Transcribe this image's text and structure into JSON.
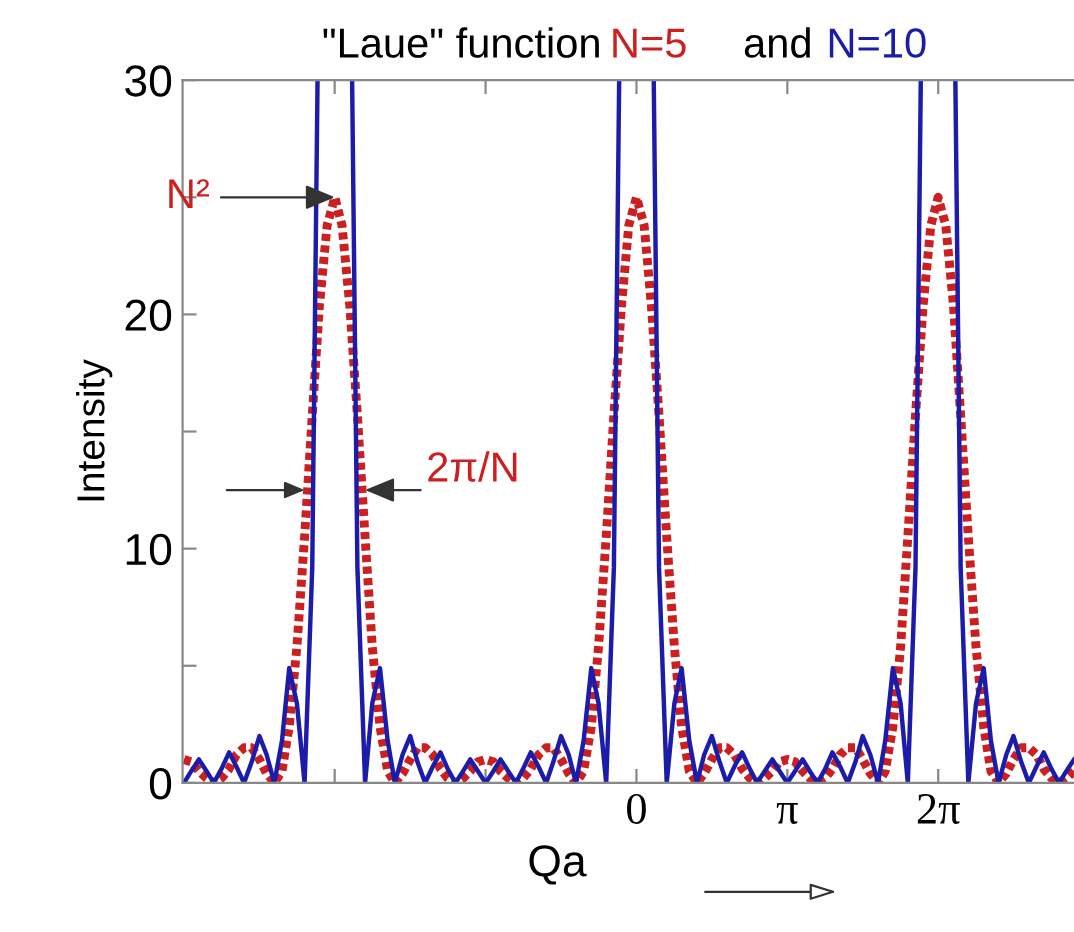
{
  "chart_data": {
    "type": "line",
    "title": "\"Laue\" function",
    "xlabel": "Qa",
    "ylabel": "Intensity",
    "xlim": [
      -9.45,
      9.11
    ],
    "ylim": [
      0,
      30
    ],
    "xticks": [
      {
        "value": -6.2832,
        "label": null
      },
      {
        "value": -3.1416,
        "label": null
      },
      {
        "value": 0,
        "label": "0"
      },
      {
        "value": 3.1416,
        "label": "π"
      },
      {
        "value": 6.2832,
        "label": "2π"
      }
    ],
    "yticks": [
      0,
      {
        "value": 5,
        "label": null
      },
      10,
      {
        "value": 15,
        "label": null
      },
      20,
      {
        "value": 25,
        "label": null
      },
      30
    ],
    "grid": false,
    "annotations": [
      "and",
      {
        "text": "N²",
        "x": -6.28,
        "y": 25
      },
      {
        "text": "2π/N",
        "x": -5.65,
        "y": 12.5
      }
    ],
    "series": [
      {
        "name": "N=5",
        "color": "#cc1f1f",
        "line_style": "dotted",
        "x": [
          -9.42,
          -9.27,
          -9.11,
          -8.95,
          -8.8,
          -8.64,
          -8.48,
          -8.33,
          -8.17,
          -8.01,
          -7.85,
          -7.7,
          -7.54,
          -7.38,
          -7.23,
          -7.07,
          -6.91,
          -6.75,
          -6.6,
          -6.44,
          -6.28,
          -6.13,
          -5.97,
          -5.81,
          -5.65,
          -5.5,
          -5.34,
          -5.18,
          -5.03,
          -4.87,
          -4.71,
          -4.56,
          -4.4,
          -4.24,
          -4.08,
          -3.93,
          -3.77,
          -3.61,
          -3.46,
          -3.3,
          -3.14,
          -2.98,
          -2.83,
          -2.67,
          -2.51,
          -2.36,
          -2.2,
          -2.04,
          -1.88,
          -1.73,
          -1.57,
          -1.41,
          -1.26,
          -1.1,
          -0.94,
          -0.79,
          -0.63,
          -0.47,
          -0.31,
          -0.16,
          0,
          0.16,
          0.31,
          0.47,
          0.63,
          0.79,
          0.94,
          1.1,
          1.26,
          1.41,
          1.57,
          1.73,
          1.88,
          2.04,
          2.2,
          2.36,
          2.51,
          2.67,
          2.83,
          2.98,
          3.14,
          3.3,
          3.46,
          3.61,
          3.77,
          3.93,
          4.08,
          4.24,
          4.4,
          4.56,
          4.71,
          4.87,
          5.03,
          5.18,
          5.34,
          5.5,
          5.65,
          5.81,
          5.97,
          6.13,
          6.28,
          6.44,
          6.6,
          6.75,
          6.91,
          7.07,
          7.23,
          7.38,
          7.54,
          7.7,
          7.85,
          8.01,
          8.17,
          8.33,
          8.48,
          8.64,
          8.8,
          8.95,
          9.11
        ],
        "values": [
          1.0,
          0.9,
          0.5,
          0.2,
          0,
          0.2,
          0.6,
          1.2,
          1.5,
          1.5,
          1.0,
          0.4,
          0,
          0.5,
          2.4,
          5.8,
          10.5,
          15.7,
          20.4,
          23.8,
          25,
          23.8,
          20.4,
          15.7,
          10.5,
          5.8,
          2.4,
          0.5,
          0,
          0.4,
          1.0,
          1.5,
          1.5,
          1.2,
          0.6,
          0.2,
          0,
          0.2,
          0.5,
          0.9,
          1.0,
          0.9,
          0.5,
          0.2,
          0,
          0.2,
          0.6,
          1.2,
          1.5,
          1.5,
          1.0,
          0.4,
          0,
          0.5,
          2.4,
          5.8,
          10.5,
          15.7,
          20.4,
          23.8,
          25,
          23.8,
          20.4,
          15.7,
          10.5,
          5.8,
          2.4,
          0.5,
          0,
          0.4,
          1.0,
          1.5,
          1.5,
          1.2,
          0.6,
          0.2,
          0,
          0.2,
          0.5,
          0.9,
          1.0,
          0.9,
          0.5,
          0.2,
          0,
          0.2,
          0.6,
          1.2,
          1.5,
          1.5,
          1.0,
          0.4,
          0,
          0.5,
          2.4,
          5.8,
          10.5,
          15.7,
          20.4,
          23.8,
          25,
          23.8,
          20.4,
          15.7,
          10.5,
          5.8,
          2.4,
          0.5,
          0,
          0.4,
          1.0,
          1.5,
          1.5,
          1.2,
          0.6,
          0.2,
          0,
          0.2,
          0.5
        ]
      },
      {
        "name": "N=10",
        "color": "#1c1caa",
        "line_style": "solid",
        "x": [
          -9.42,
          -9.27,
          -9.11,
          -8.95,
          -8.8,
          -8.64,
          -8.48,
          -8.33,
          -8.17,
          -8.01,
          -7.85,
          -7.7,
          -7.54,
          -7.38,
          -7.23,
          -7.07,
          -6.91,
          -6.75,
          -6.64,
          -6.28,
          -5.92,
          -5.81,
          -5.65,
          -5.5,
          -5.34,
          -5.18,
          -5.03,
          -4.87,
          -4.71,
          -4.56,
          -4.4,
          -4.24,
          -4.08,
          -3.93,
          -3.77,
          -3.61,
          -3.46,
          -3.3,
          -3.14,
          -2.98,
          -2.83,
          -2.67,
          -2.51,
          -2.36,
          -2.2,
          -2.04,
          -1.88,
          -1.73,
          -1.57,
          -1.41,
          -1.26,
          -1.1,
          -0.94,
          -0.79,
          -0.63,
          -0.47,
          -0.36,
          0,
          0.36,
          0.47,
          0.63,
          0.79,
          0.94,
          1.1,
          1.26,
          1.41,
          1.57,
          1.73,
          1.88,
          2.04,
          2.2,
          2.36,
          2.51,
          2.67,
          2.83,
          2.98,
          3.14,
          3.3,
          3.46,
          3.61,
          3.77,
          3.93,
          4.08,
          4.24,
          4.4,
          4.56,
          4.71,
          4.87,
          5.03,
          5.18,
          5.34,
          5.5,
          5.65,
          5.81,
          5.92,
          6.28,
          6.64,
          6.75,
          6.91,
          7.07,
          7.23,
          7.38,
          7.54,
          7.7,
          7.85,
          8.01,
          8.17,
          8.33,
          8.48,
          8.64,
          8.8,
          8.95,
          9.11
        ],
        "values": [
          0,
          0.5,
          1.0,
          0.5,
          0,
          0.6,
          1.3,
          0.7,
          0,
          0.9,
          2.0,
          1.2,
          0,
          1.8,
          4.9,
          3.4,
          0,
          9.2,
          30,
          null,
          30,
          9.2,
          0,
          3.4,
          4.9,
          1.8,
          0,
          1.2,
          2.0,
          0.9,
          0,
          0.7,
          1.3,
          0.6,
          0,
          0.5,
          1.0,
          0.5,
          0,
          0.5,
          1.0,
          0.5,
          0,
          0.6,
          1.3,
          0.7,
          0,
          0.9,
          2.0,
          1.2,
          0,
          1.8,
          4.9,
          3.4,
          0,
          9.2,
          30,
          null,
          30,
          9.2,
          0,
          3.4,
          4.9,
          1.8,
          0,
          1.2,
          2.0,
          0.9,
          0,
          0.7,
          1.3,
          0.6,
          0,
          0.5,
          1.0,
          0.5,
          0,
          0.5,
          1.0,
          0.5,
          0,
          0.6,
          1.3,
          0.7,
          0,
          0.9,
          2.0,
          1.2,
          0,
          1.8,
          4.9,
          3.4,
          0,
          9.2,
          30,
          null,
          30,
          9.2,
          0,
          3.4,
          4.9,
          1.8,
          0,
          1.2,
          2.0,
          0.9,
          0,
          0.7,
          1.3,
          0.6,
          0,
          0.5,
          1.0
        ]
      }
    ]
  }
}
